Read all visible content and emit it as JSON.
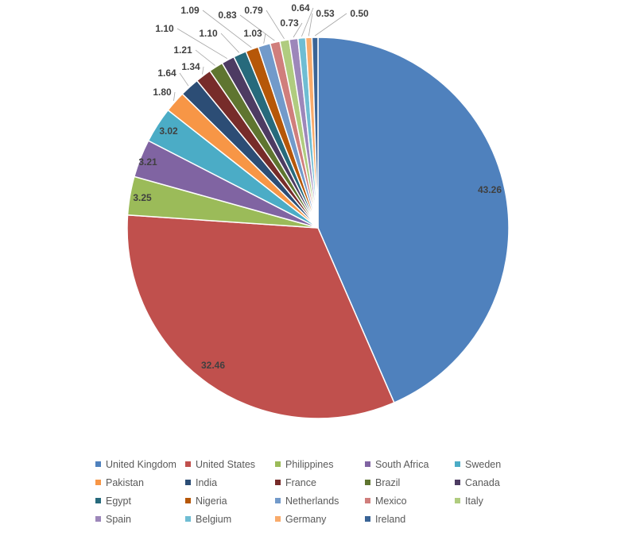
{
  "chart_data": {
    "type": "pie",
    "title": "",
    "legend_position": "bottom",
    "categories": [
      "United Kingdom",
      "United States",
      "Philippines",
      "South Africa",
      "Sweden",
      "Pakistan",
      "India",
      "France",
      "Brazil",
      "Canada",
      "Egypt",
      "Nigeria",
      "Netherlands",
      "Mexico",
      "Italy",
      "Spain",
      "Belgium",
      "Germany",
      "Ireland"
    ],
    "values": [
      43.26,
      32.46,
      3.25,
      3.21,
      3.02,
      1.8,
      1.64,
      1.34,
      1.21,
      1.1,
      1.1,
      1.09,
      1.03,
      0.83,
      0.79,
      0.73,
      0.64,
      0.53,
      0.5
    ],
    "labels": [
      "43.26",
      "32.46",
      "3.25",
      "3.21",
      "3.02",
      "1.80",
      "1.64",
      "1.34",
      "1.21",
      "1.10",
      "1.10",
      "1.09",
      "1.03",
      "0.83",
      "0.79",
      "0.73",
      "0.64",
      "0.53",
      "0.50"
    ],
    "colors": [
      "#4f81bd",
      "#c0504d",
      "#9bbb59",
      "#8064a2",
      "#4bacc6",
      "#f79646",
      "#2c4d75",
      "#772c2a",
      "#5f7530",
      "#4d3b62",
      "#276a7c",
      "#b65708",
      "#729aca",
      "#d07e7c",
      "#b0cc7f",
      "#9d87ba",
      "#6fbdd3",
      "#f9ab6b",
      "#3a6496"
    ]
  }
}
